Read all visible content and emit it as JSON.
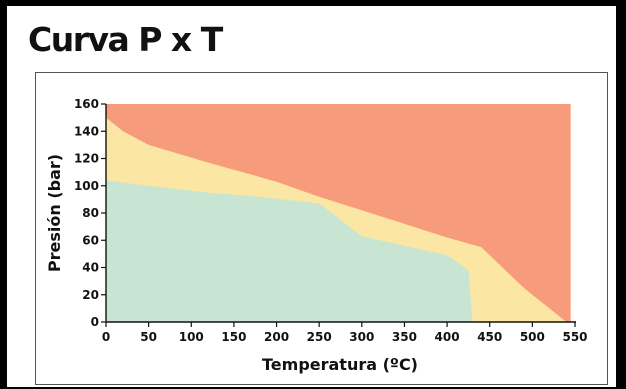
{
  "title": "Curva P x T",
  "chart_data": {
    "type": "area",
    "xlabel": "Temperatura  (ºC)",
    "ylabel": "Presión (bar)",
    "xlim": [
      0,
      550
    ],
    "ylim": [
      0,
      160
    ],
    "x_ticks": [
      0,
      50,
      100,
      150,
      200,
      250,
      300,
      350,
      400,
      450,
      500,
      550
    ],
    "y_ticks": [
      0,
      20,
      40,
      60,
      80,
      100,
      120,
      140,
      160
    ],
    "grid": false,
    "colors": {
      "red": "#f69c7c",
      "yellow": "#fce6a3",
      "green": "#c7e5d2"
    },
    "regions": [
      {
        "color": "red",
        "points": [
          [
            0,
            160
          ],
          [
            545,
            160
          ],
          [
            545,
            0
          ],
          [
            0,
            0
          ]
        ]
      },
      {
        "color": "yellow",
        "points": [
          [
            0,
            150
          ],
          [
            20,
            140
          ],
          [
            50,
            130
          ],
          [
            120,
            117
          ],
          [
            200,
            103
          ],
          [
            250,
            92
          ],
          [
            300,
            82
          ],
          [
            400,
            62
          ],
          [
            440,
            55
          ],
          [
            490,
            25
          ],
          [
            540,
            0
          ],
          [
            0,
            0
          ]
        ]
      },
      {
        "color": "green",
        "points": [
          [
            0,
            104
          ],
          [
            50,
            100
          ],
          [
            120,
            95
          ],
          [
            180,
            92
          ],
          [
            250,
            87
          ],
          [
            300,
            63
          ],
          [
            400,
            49
          ],
          [
            425,
            38
          ],
          [
            430,
            0
          ],
          [
            0,
            0
          ]
        ]
      }
    ]
  }
}
